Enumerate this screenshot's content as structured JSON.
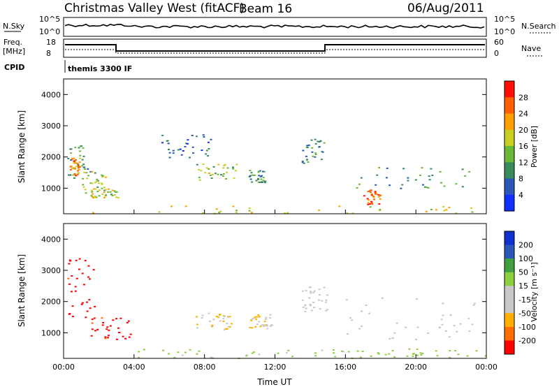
{
  "header": {
    "station": "Christmas Valley West (fitACF)",
    "beam": "Beam 16",
    "date": "06/Aug/2011"
  },
  "top_panels": {
    "nsky_label": "N.Sky",
    "nsky_ticks": [
      "10^5",
      "10^0"
    ],
    "nsearch_label": "N.Search",
    "nsearch_ticks": [
      "10^5",
      "10^0"
    ],
    "freq_label_1": "Freq.",
    "freq_label_2": "[MHz]",
    "freq_ticks": [
      "18",
      "8"
    ],
    "nave_label": "Nave",
    "nave_ticks": [
      "60",
      "0"
    ],
    "cpid_label": "CPID",
    "cpid_text": "themis 3300 IF"
  },
  "colors": {
    "power_scale": [
      "#1030ff",
      "#2a58b8",
      "#3a8a5a",
      "#6ab83a",
      "#c8d020",
      "#ffa000",
      "#ff6000",
      "#ff1000"
    ],
    "velocity_scale": [
      "#ff0000",
      "#ff7000",
      "#ffb000",
      "#c8c8c8",
      "#c8c8c8",
      "#8ad040",
      "#40a040",
      "#2a58b8",
      "#1030d0"
    ]
  },
  "chart_data": [
    {
      "type": "heatmap",
      "title": "",
      "xlabel": "",
      "ylabel": "Slant Range [km]",
      "x_ticks": [
        "00:00",
        "04:00",
        "08:00",
        "12:00",
        "16:00",
        "20:00",
        "00:00"
      ],
      "xlim_hours": [
        0,
        24
      ],
      "y_ticks": [
        "1000",
        "2000",
        "3000",
        "4000"
      ],
      "ylim": [
        180,
        4500
      ],
      "colorbar_label": "Power [dB]",
      "colorbar_ticks": [
        "4",
        "8",
        "12",
        "16",
        "20",
        "24",
        "28"
      ],
      "clim": [
        0,
        30
      ],
      "clusters": [
        {
          "t": [
            0.2,
            1.5
          ],
          "r": [
            1300,
            2400
          ],
          "v": 10
        },
        {
          "t": [
            1.0,
            2.4
          ],
          "r": [
            800,
            1600
          ],
          "v": 14
        },
        {
          "t": [
            1.5,
            3.2
          ],
          "r": [
            700,
            1000
          ],
          "v": 16
        },
        {
          "t": [
            0.3,
            0.9
          ],
          "r": [
            1400,
            2000
          ],
          "v": 22
        },
        {
          "t": [
            5.5,
            8.5
          ],
          "r": [
            2000,
            2800
          ],
          "v": 6
        },
        {
          "t": [
            7.5,
            9.8
          ],
          "r": [
            1200,
            1800
          ],
          "v": 14
        },
        {
          "t": [
            10.5,
            11.5
          ],
          "r": [
            1200,
            1600
          ],
          "v": 10
        },
        {
          "t": [
            13.5,
            14.8
          ],
          "r": [
            1800,
            2600
          ],
          "v": 10
        },
        {
          "t": [
            16.5,
            23.0
          ],
          "r": [
            1000,
            1700
          ],
          "v": 10
        },
        {
          "t": [
            17.0,
            18.0
          ],
          "r": [
            500,
            1000
          ],
          "v": 24
        },
        {
          "t": [
            0.0,
            24.0
          ],
          "r": [
            200,
            450
          ],
          "v": 18
        }
      ]
    },
    {
      "type": "heatmap",
      "title": "",
      "xlabel": "Time UT",
      "ylabel": "Slant Range [km]",
      "x_ticks": [
        "00:00",
        "04:00",
        "08:00",
        "12:00",
        "16:00",
        "20:00",
        "00:00"
      ],
      "xlim_hours": [
        0,
        24
      ],
      "y_ticks": [
        "1000",
        "2000",
        "3000",
        "4000"
      ],
      "ylim": [
        180,
        4500
      ],
      "colorbar_label": "Velocity [m s⁻¹]",
      "colorbar_ticks": [
        "200",
        "100",
        "50",
        "15",
        "-15",
        "-50",
        "-100",
        "-200"
      ],
      "clim": [
        -250,
        250
      ],
      "clusters": [
        {
          "t": [
            0.2,
            1.8
          ],
          "r": [
            1500,
            3500
          ],
          "v": -220
        },
        {
          "t": [
            1.5,
            3.8
          ],
          "r": [
            800,
            1500
          ],
          "v": -220
        },
        {
          "t": [
            7.5,
            9.5
          ],
          "r": [
            1100,
            1700
          ],
          "v": -80
        },
        {
          "t": [
            10.5,
            11.8
          ],
          "r": [
            1100,
            1600
          ],
          "v": -80
        },
        {
          "t": [
            13.5,
            15.0
          ],
          "r": [
            1700,
            2500
          ],
          "v": 0
        },
        {
          "t": [
            16.0,
            23.5
          ],
          "r": [
            800,
            2200
          ],
          "v": 0
        },
        {
          "t": [
            4.0,
            16.0
          ],
          "r": [
            200,
            500
          ],
          "v": 30
        },
        {
          "t": [
            16.0,
            24.0
          ],
          "r": [
            200,
            500
          ],
          "v": 40
        }
      ]
    }
  ]
}
